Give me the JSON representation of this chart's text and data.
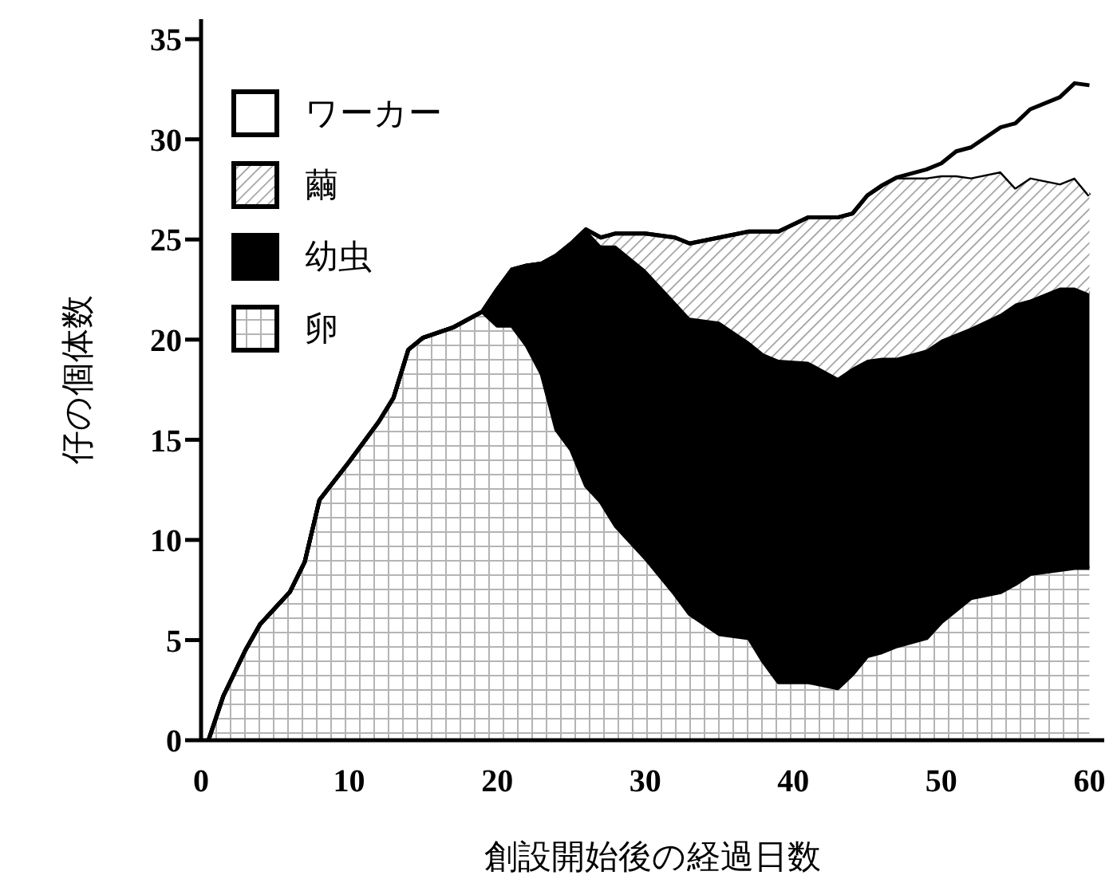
{
  "chart_data": {
    "type": "area",
    "stacked": true,
    "xlabel": "創設開始後の経過日数",
    "ylabel": "仔の個体数",
    "xlim": [
      0,
      61
    ],
    "ylim": [
      0,
      36
    ],
    "xticks": [
      0,
      10,
      20,
      30,
      40,
      50,
      60
    ],
    "yticks": [
      0,
      5,
      10,
      15,
      20,
      25,
      30,
      35
    ],
    "legend": "top left",
    "grid": false,
    "x": [
      0.5,
      1.5,
      3,
      4,
      5,
      6,
      7,
      8,
      10,
      12,
      13,
      14,
      15,
      17,
      19,
      20,
      21,
      22,
      23,
      24,
      25,
      26,
      27,
      28,
      30,
      32,
      33,
      35,
      37,
      38,
      39,
      41,
      43,
      44,
      45,
      46,
      47,
      49,
      50,
      51,
      52,
      54,
      55,
      56,
      58,
      59,
      60
    ],
    "series": [
      {
        "name": "卵",
        "color": "#b4b4b4",
        "values": [
          0,
          2.2,
          4.5,
          5.8,
          6.6,
          7.4,
          8.9,
          12.0,
          13.9,
          15.9,
          17.1,
          19.5,
          20.1,
          20.6,
          21.4,
          20.7,
          20.7,
          19.7,
          18.3,
          15.5,
          14.5,
          12.7,
          11.9,
          10.7,
          9.1,
          7.3,
          6.3,
          5.3,
          5.1,
          3.9,
          2.9,
          2.9,
          2.6,
          3.3,
          4.2,
          4.4,
          4.7,
          5.1,
          5.9,
          6.5,
          7.1,
          7.4,
          7.8,
          8.3,
          8.5,
          8.6,
          8.6
        ]
      },
      {
        "name": "幼虫",
        "color": "#000000",
        "values": [
          0,
          0,
          0,
          0,
          0,
          0,
          0,
          0,
          0,
          0,
          0,
          0,
          0,
          0,
          0,
          1.8,
          2.8,
          4.0,
          5.5,
          8.7,
          10.3,
          12.8,
          12.8,
          14.0,
          14.4,
          14.6,
          14.8,
          15.6,
          14.8,
          15.4,
          16.1,
          16.0,
          15.5,
          15.3,
          14.8,
          14.7,
          14.4,
          14.4,
          14.1,
          13.8,
          13.5,
          13.9,
          14.0,
          13.7,
          14.1,
          14.0,
          13.7
        ]
      },
      {
        "name": "繭",
        "color": "#8c8c8c",
        "values": [
          0,
          0,
          0,
          0,
          0,
          0,
          0,
          0,
          0,
          0,
          0,
          0,
          0,
          0,
          0,
          0,
          0,
          0,
          0,
          0,
          0,
          0,
          0.4,
          0.6,
          1.8,
          3.2,
          3.7,
          4.2,
          5.5,
          6.1,
          6.4,
          7.2,
          8.0,
          7.7,
          8.2,
          8.6,
          9.0,
          8.6,
          8.2,
          7.9,
          7.5,
          7.1,
          5.8,
          6.1,
          5.2,
          5.5,
          4.9
        ]
      },
      {
        "name": "ワーカー",
        "color": "#ffffff",
        "values": [
          0,
          0,
          0,
          0,
          0,
          0,
          0,
          0,
          0,
          0,
          0,
          0,
          0,
          0,
          0,
          0,
          0,
          0,
          0,
          0,
          0,
          0,
          0,
          0,
          0,
          0,
          0,
          0,
          0,
          0,
          0,
          0,
          0,
          0,
          0,
          0,
          0,
          0.4,
          0.6,
          1.2,
          1.5,
          2.2,
          3.2,
          3.4,
          4.3,
          4.7,
          5.5
        ]
      }
    ]
  }
}
